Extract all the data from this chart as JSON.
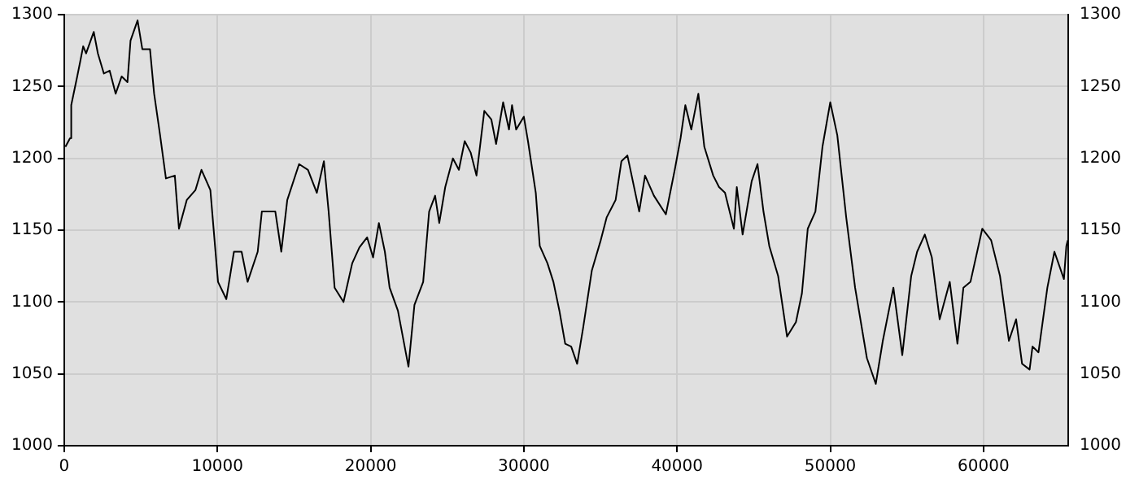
{
  "chart_data": {
    "type": "line",
    "xlim": [
      0,
      65536
    ],
    "xticks": [
      0,
      10000,
      20000,
      30000,
      40000,
      50000,
      60000
    ],
    "ylim": [
      1000,
      1300
    ],
    "yticks": [
      1000,
      1050,
      1100,
      1150,
      1200,
      1250,
      1300
    ],
    "y2lim": [
      1000,
      1300
    ],
    "y2ticks": [
      1000,
      1050,
      1100,
      1150,
      1200,
      1250,
      1300
    ],
    "grid": true,
    "legend": false,
    "marker": "none",
    "line_style": "solid",
    "series": [
      {
        "color": "#000000",
        "x": [
          80,
          380,
          460,
          850,
          1040,
          1240,
          1430,
          1930,
          2200,
          2590,
          2970,
          3360,
          3750,
          4130,
          4330,
          4790,
          5100,
          5600,
          5870,
          6260,
          6640,
          7220,
          7490,
          8000,
          8570,
          8960,
          9540,
          10040,
          10580,
          11080,
          11580,
          11970,
          12630,
          12900,
          13780,
          14170,
          14560,
          15330,
          15910,
          16490,
          16950,
          17260,
          17650,
          18230,
          18800,
          19270,
          19770,
          20160,
          20540,
          20930,
          21240,
          21780,
          22470,
          22860,
          23430,
          23820,
          24210,
          24480,
          24870,
          25370,
          25760,
          26140,
          26530,
          26910,
          27420,
          27880,
          28190,
          28650,
          29030,
          29230,
          29500,
          30000,
          30270,
          30780,
          31040,
          31540,
          31930,
          32320,
          32700,
          33090,
          33480,
          33870,
          34440,
          35020,
          35410,
          35990,
          36370,
          36760,
          37530,
          37910,
          38490,
          39270,
          39850,
          40230,
          40540,
          40930,
          41390,
          41780,
          42360,
          42740,
          43130,
          43710,
          43900,
          44280,
          44870,
          45250,
          45640,
          46020,
          46600,
          47180,
          47760,
          48150,
          48530,
          49030,
          49490,
          50000,
          50460,
          51040,
          51620,
          52390,
          52970,
          53430,
          54120,
          54700,
          55280,
          55670,
          56170,
          56630,
          57140,
          57800,
          58300,
          58690,
          59150,
          59920,
          60500,
          61080,
          61660,
          62130,
          62520,
          63010,
          63200,
          63590,
          64170,
          64630,
          65250,
          65410,
          65500
        ],
        "values": [
          1208,
          1214,
          1237,
          1257,
          1267,
          1278,
          1273,
          1288,
          1273,
          1259,
          1261,
          1245,
          1257,
          1253,
          1282,
          1296,
          1276,
          1276,
          1245,
          1216,
          1186,
          1188,
          1151,
          1171,
          1178,
          1192,
          1178,
          1114,
          1102,
          1135,
          1135,
          1114,
          1135,
          1163,
          1163,
          1135,
          1171,
          1196,
          1192,
          1176,
          1198,
          1163,
          1110,
          1100,
          1127,
          1138,
          1145,
          1131,
          1155,
          1135,
          1110,
          1094,
          1055,
          1098,
          1114,
          1163,
          1174,
          1155,
          1180,
          1200,
          1192,
          1212,
          1204,
          1188,
          1233,
          1227,
          1210,
          1239,
          1220,
          1237,
          1220,
          1229,
          1212,
          1176,
          1139,
          1127,
          1114,
          1094,
          1071,
          1069,
          1057,
          1082,
          1122,
          1143,
          1159,
          1171,
          1198,
          1202,
          1163,
          1188,
          1174,
          1161,
          1192,
          1214,
          1237,
          1220,
          1245,
          1208,
          1188,
          1180,
          1176,
          1151,
          1180,
          1147,
          1184,
          1196,
          1163,
          1139,
          1118,
          1076,
          1086,
          1106,
          1151,
          1163,
          1208,
          1239,
          1216,
          1159,
          1110,
          1061,
          1043,
          1073,
          1110,
          1063,
          1118,
          1135,
          1147,
          1131,
          1088,
          1114,
          1071,
          1110,
          1114,
          1151,
          1143,
          1118,
          1073,
          1088,
          1057,
          1053,
          1069,
          1065,
          1110,
          1135,
          1116,
          1139,
          1143
        ]
      }
    ]
  }
}
